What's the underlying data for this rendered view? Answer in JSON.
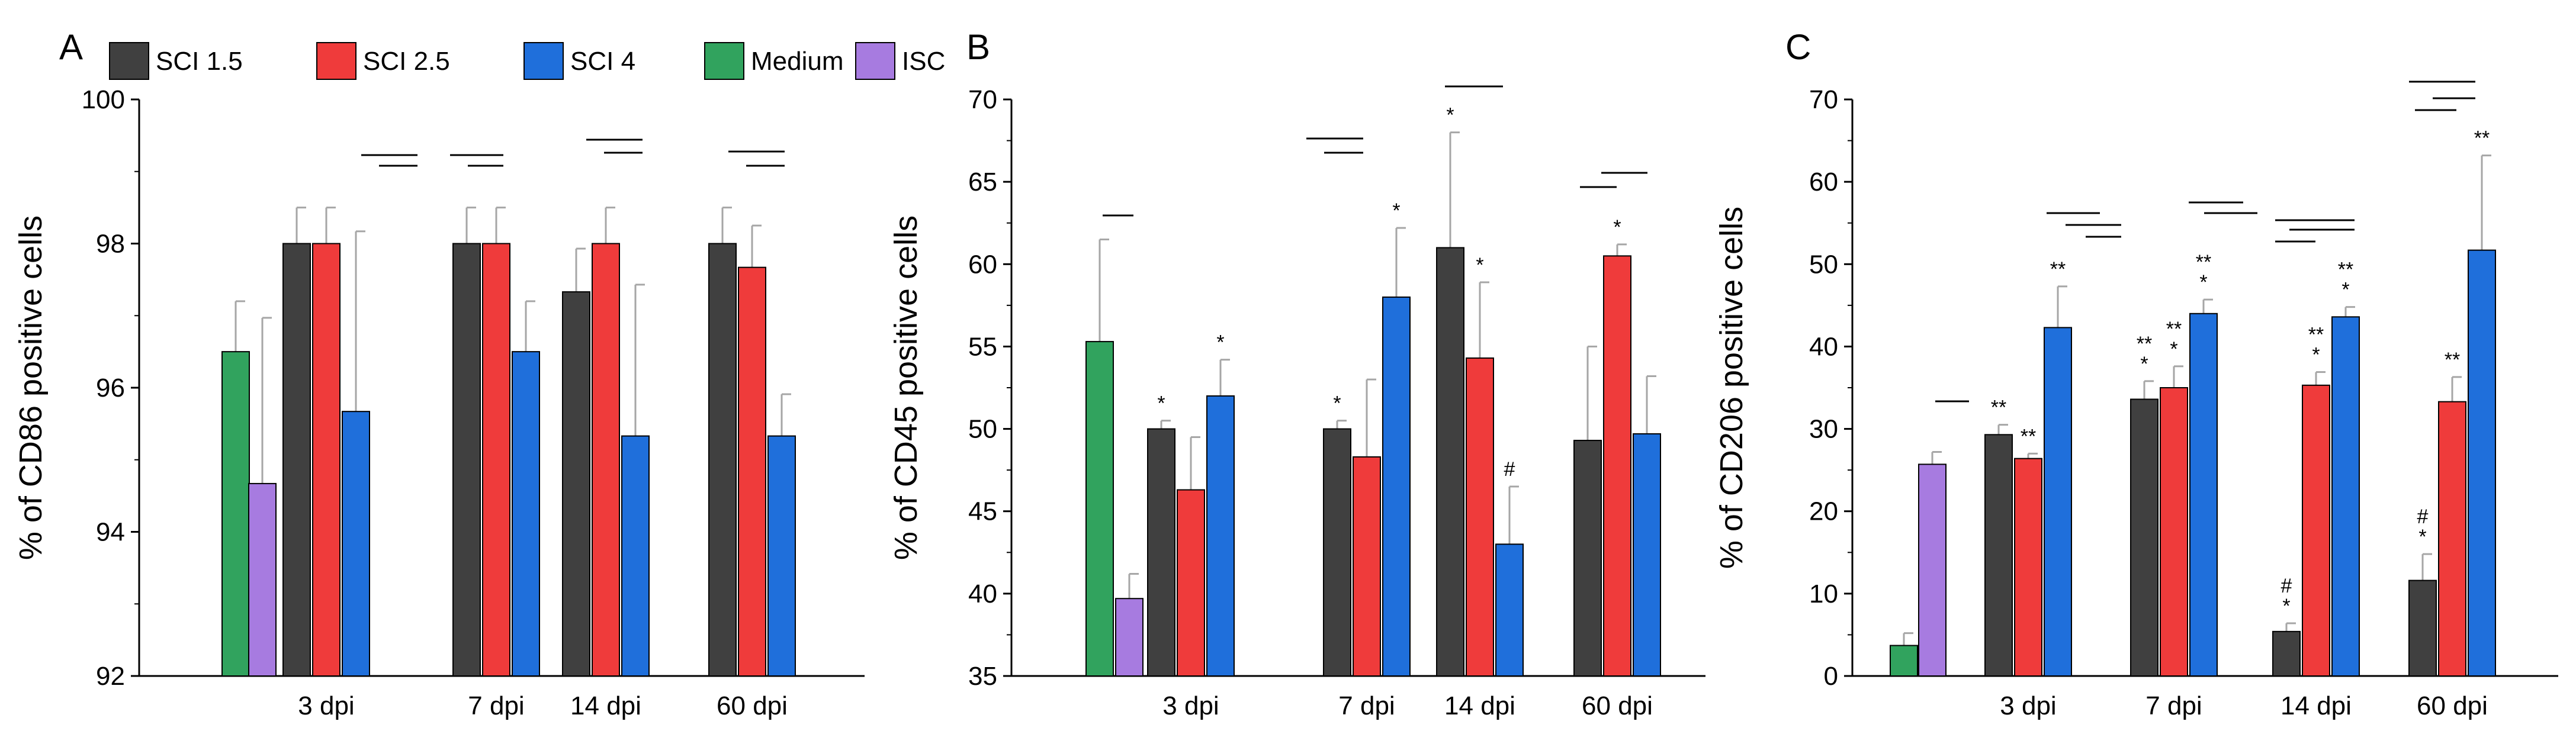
{
  "colors": {
    "SCI 1.5": "#404040",
    "SCI 2.5": "#ef3b3b",
    "SCI 4": "#1f6fdb",
    "Medium": "#31a35e",
    "ISC": "#a77be0"
  },
  "legend": [
    "SCI 1.5",
    "SCI 2.5",
    "SCI 4",
    "Medium",
    "ISC"
  ],
  "chart_data": [
    {
      "type": "bar",
      "panel": "A",
      "ylabel": "% of CD86 positive cells",
      "ylim": [
        92,
        100
      ],
      "yticks": [
        92,
        94,
        96,
        98,
        100
      ],
      "categories": [
        "3 dpi",
        "7 dpi",
        "14 dpi",
        "60 dpi"
      ],
      "controls": [
        {
          "name": "Medium",
          "value": 96.5,
          "error": 0.7
        },
        {
          "name": "ISC",
          "value": 94.67,
          "error": 2.3
        }
      ],
      "series": [
        {
          "name": "SCI 1.5",
          "values": [
            98.0,
            98.0,
            97.33,
            98.0
          ],
          "errors": [
            0.5,
            0.5,
            0.6,
            0.5
          ]
        },
        {
          "name": "SCI 2.5",
          "values": [
            98.0,
            98.0,
            98.0,
            97.67
          ],
          "errors": [
            0.5,
            0.5,
            0.5,
            0.58
          ]
        },
        {
          "name": "SCI 4",
          "values": [
            95.67,
            96.5,
            95.33,
            95.33
          ],
          "errors": [
            2.5,
            0.7,
            2.1,
            0.58
          ]
        }
      ],
      "annotations": [
        {
          "category": 0,
          "series": 0,
          "text": [
            ""
          ]
        },
        {
          "category": 0,
          "series": 1,
          "text": [
            ""
          ]
        },
        {
          "category": 0,
          "series": 2,
          "text": [
            ""
          ]
        }
      ]
    },
    {
      "type": "bar",
      "panel": "B",
      "ylabel": "% of CD45 positive cells",
      "ylim": [
        35,
        70
      ],
      "yticks": [
        35,
        40,
        45,
        50,
        55,
        60,
        65,
        70
      ],
      "categories": [
        "3 dpi",
        "7 dpi",
        "14 dpi",
        "60 dpi"
      ],
      "controls": [
        {
          "name": "Medium",
          "value": 55.3,
          "error": 6.2
        },
        {
          "name": "ISC",
          "value": 39.7,
          "error": 1.5
        }
      ],
      "series": [
        {
          "name": "SCI 1.5",
          "values": [
            50.0,
            50.0,
            61.0,
            49.3
          ],
          "errors": [
            0.5,
            0.5,
            7.0,
            5.7
          ]
        },
        {
          "name": "SCI 2.5",
          "values": [
            46.3,
            48.3,
            54.3,
            60.5
          ],
          "errors": [
            3.2,
            4.7,
            4.6,
            0.7
          ]
        },
        {
          "name": "SCI 4",
          "values": [
            52.0,
            58.0,
            43.0,
            49.7
          ],
          "errors": [
            2.2,
            4.2,
            3.5,
            3.5
          ]
        }
      ],
      "annotations": [
        {
          "category": 0,
          "series": 0,
          "text": [
            "*"
          ]
        },
        {
          "category": 0,
          "series": 2,
          "text": [
            "*"
          ]
        },
        {
          "category": 1,
          "series": 0,
          "text": [
            "*"
          ]
        },
        {
          "category": 1,
          "series": 2,
          "text": [
            "*"
          ]
        },
        {
          "category": 2,
          "series": 0,
          "text": [
            "*"
          ]
        },
        {
          "category": 2,
          "series": 1,
          "text": [
            "*"
          ]
        },
        {
          "category": 2,
          "series": 2,
          "text": [
            "#"
          ]
        },
        {
          "category": 3,
          "series": 1,
          "text": [
            "*"
          ]
        }
      ]
    },
    {
      "type": "bar",
      "panel": "C",
      "ylabel": "% of CD206 positive cells",
      "ylim": [
        0,
        70
      ],
      "yticks": [
        0,
        10,
        20,
        30,
        40,
        50,
        60,
        70
      ],
      "categories": [
        "3 dpi",
        "7 dpi",
        "14 dpi",
        "60 dpi"
      ],
      "controls": [
        {
          "name": "Medium",
          "value": 3.7,
          "error": 1.5
        },
        {
          "name": "ISC",
          "value": 25.7,
          "error": 1.5
        }
      ],
      "series": [
        {
          "name": "SCI 1.5",
          "values": [
            29.3,
            33.6,
            5.4,
            11.6
          ],
          "errors": [
            1.2,
            2.2,
            1.0,
            3.2
          ]
        },
        {
          "name": "SCI 2.5",
          "values": [
            26.4,
            35.0,
            35.3,
            33.3
          ],
          "errors": [
            0.6,
            2.6,
            1.6,
            3.0
          ]
        },
        {
          "name": "SCI 4",
          "values": [
            42.3,
            44.0,
            43.6,
            51.7
          ],
          "errors": [
            5.0,
            1.7,
            1.2,
            11.5
          ]
        }
      ],
      "annotations": [
        {
          "category": 0,
          "series": 0,
          "text": [
            "**"
          ]
        },
        {
          "category": 0,
          "series": 1,
          "text": [
            "**"
          ]
        },
        {
          "category": 0,
          "series": 2,
          "text": [
            "**"
          ]
        },
        {
          "category": 1,
          "series": 0,
          "text": [
            "*",
            "**"
          ]
        },
        {
          "category": 1,
          "series": 1,
          "text": [
            "*",
            "**"
          ]
        },
        {
          "category": 1,
          "series": 2,
          "text": [
            "*",
            "**"
          ]
        },
        {
          "category": 2,
          "series": 0,
          "text": [
            "*",
            "#"
          ]
        },
        {
          "category": 2,
          "series": 1,
          "text": [
            "*",
            "**"
          ]
        },
        {
          "category": 2,
          "series": 2,
          "text": [
            "*",
            "**"
          ]
        },
        {
          "category": 3,
          "series": 0,
          "text": [
            "*",
            "#"
          ]
        },
        {
          "category": 3,
          "series": 1,
          "text": [
            "**"
          ]
        },
        {
          "category": 3,
          "series": 2,
          "text": [
            "**"
          ]
        }
      ]
    }
  ]
}
